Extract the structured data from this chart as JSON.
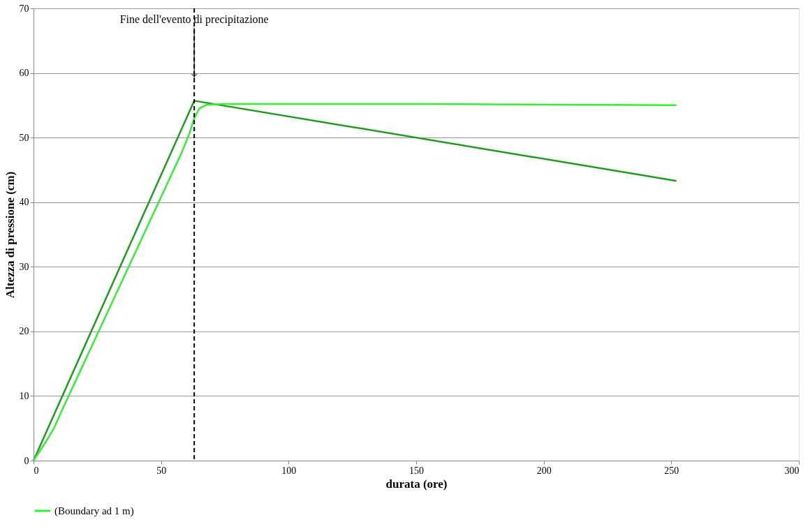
{
  "chart_data": {
    "type": "line",
    "xlabel": "durata (ore)",
    "ylabel": "Altezza di pressione (cm)",
    "xlim": [
      0,
      300
    ],
    "xticks": [
      0,
      50,
      100,
      150,
      200,
      250,
      300
    ],
    "ylim": [
      0,
      70
    ],
    "yticks": [
      0,
      10,
      20,
      30,
      40,
      50,
      60,
      70
    ],
    "grid": "y",
    "legend": "bottom",
    "marker": "none",
    "line_style": "solid",
    "series": [
      {
        "color": "#1e9b1e",
        "x": [
          0,
          63,
          252
        ],
        "values": [
          0,
          55.7,
          43.3
        ]
      },
      {
        "name": "(Boundary ad 1 m)",
        "color": "#33ee33",
        "x": [
          0,
          2,
          5,
          8,
          12,
          20,
          30,
          40,
          50,
          58,
          61,
          63,
          65,
          68,
          75,
          150,
          252
        ],
        "values": [
          0,
          1.2,
          3,
          5,
          8.5,
          15.3,
          23.8,
          32.3,
          40.8,
          47.6,
          50.5,
          53,
          54.5,
          55.1,
          55.2,
          55.2,
          55.0
        ]
      }
    ],
    "ref_lines": [
      {
        "axis": "x",
        "value": 63,
        "label": null,
        "color": "#000000",
        "line_style": "dashed"
      }
    ],
    "annotations": [
      {
        "text": "Fine dell'evento di precipitazione",
        "x": 63,
        "y": 67
      }
    ]
  }
}
